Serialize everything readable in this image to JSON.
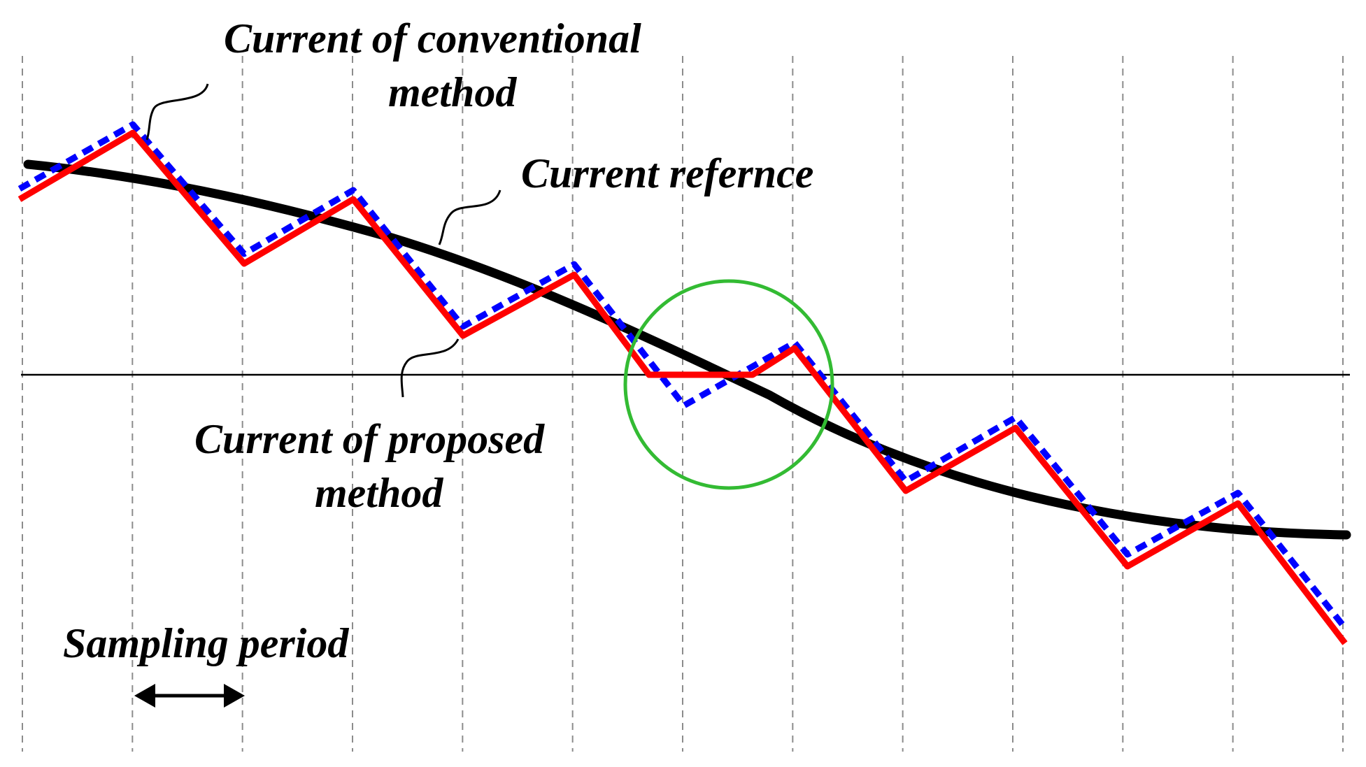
{
  "labels": {
    "conventional_line1": "Current of conventional",
    "conventional_line2": "method",
    "reference": "Current refernce",
    "proposed_line1": "Current of proposed",
    "proposed_line2": "method",
    "sampling": "Sampling period"
  },
  "colors": {
    "reference": "#000000",
    "proposed": "#ff0000",
    "conventional": "#0000ff",
    "highlight": "#33bb33",
    "grid": "#8c8c8c",
    "axis": "#000000"
  },
  "sampling_period_count": 12
}
